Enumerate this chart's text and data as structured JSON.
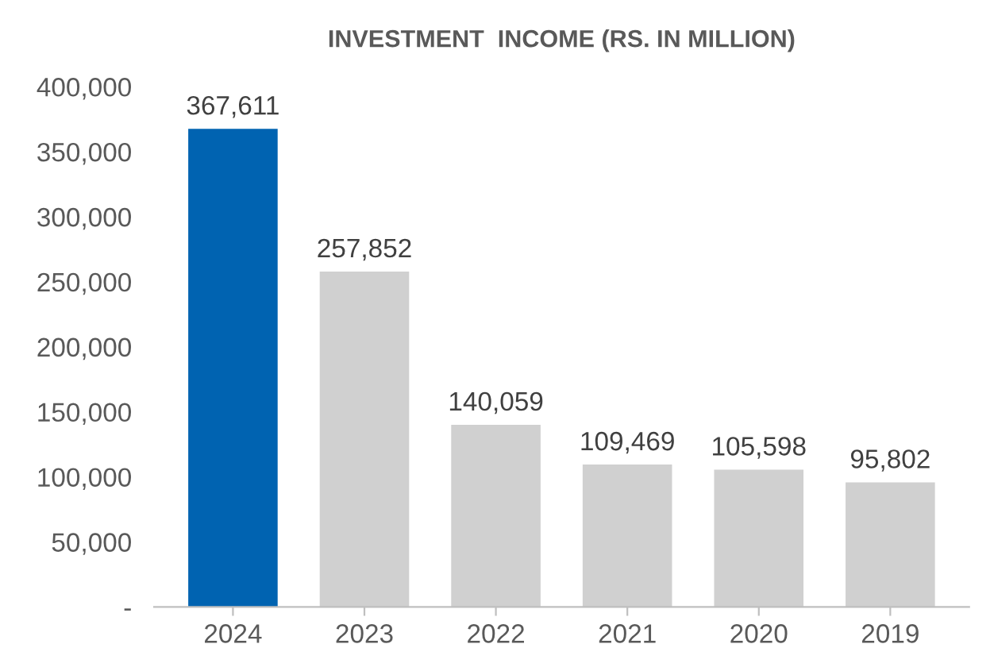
{
  "chart_data": {
    "type": "bar",
    "title": "INVESTMENT  INCOME (RS. IN MILLION)",
    "categories": [
      "2024",
      "2023",
      "2022",
      "2021",
      "2020",
      "2019"
    ],
    "values": [
      367611,
      257852,
      140059,
      109469,
      105598,
      95802
    ],
    "colors": [
      "#0063b1",
      "#d0d0d0",
      "#d0d0d0",
      "#d0d0d0",
      "#d0d0d0",
      "#d0d0d0"
    ],
    "value_labels": [
      "367,611",
      "257,852",
      "140,059",
      "109,469",
      "105,598",
      "95,802"
    ],
    "ylim": [
      0,
      400000
    ],
    "yticks": [
      {
        "value": 0,
        "label": "-"
      },
      {
        "value": 50000,
        "label": "50,000"
      },
      {
        "value": 100000,
        "label": "100,000"
      },
      {
        "value": 150000,
        "label": "150,000"
      },
      {
        "value": 200000,
        "label": "200,000"
      },
      {
        "value": 250000,
        "label": "250,000"
      },
      {
        "value": 300000,
        "label": "300,000"
      },
      {
        "value": 350000,
        "label": "350,000"
      },
      {
        "value": 400000,
        "label": "400,000"
      }
    ],
    "grid": false
  }
}
